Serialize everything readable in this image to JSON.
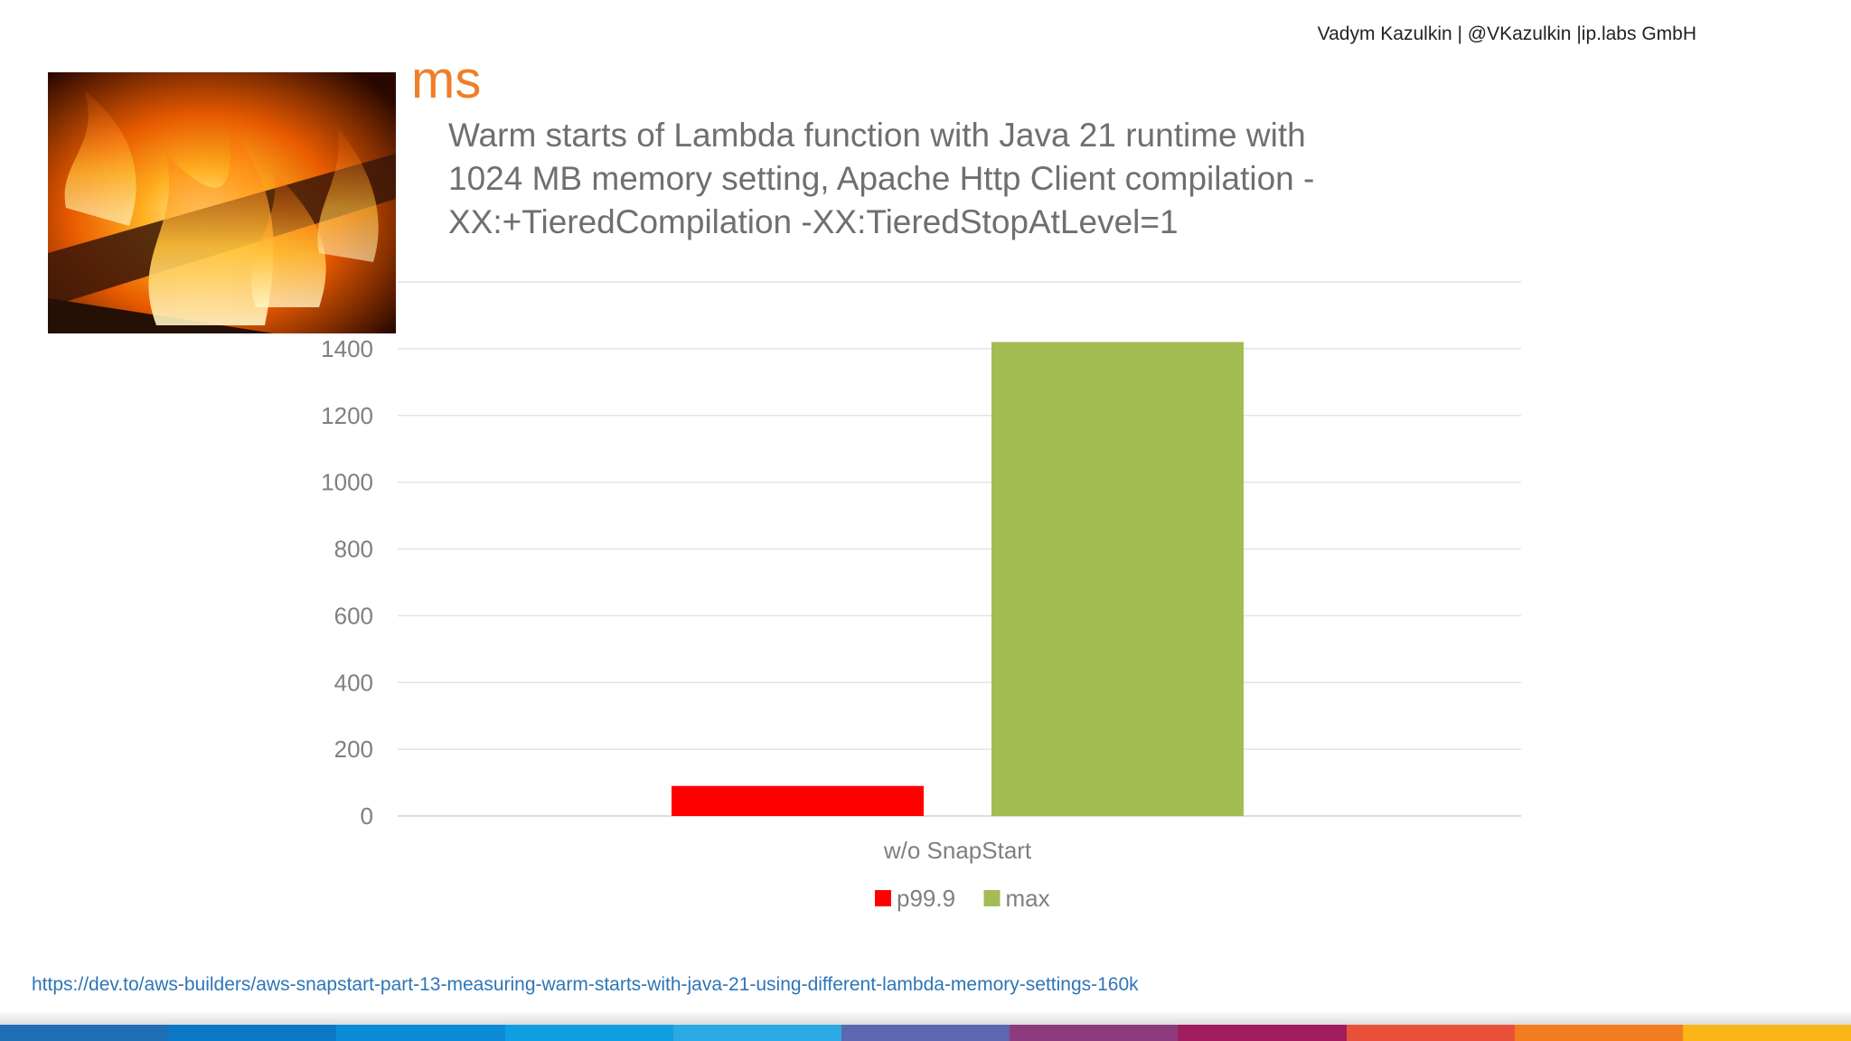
{
  "header": {
    "author": "Vadym Kazulkin | @VKazulkin |ip.labs GmbH"
  },
  "slide": {
    "unit_label": "ms",
    "title_lines": [
      "Warm starts of Lambda function with Java 21 runtime  with",
      "1024 MB memory setting, Apache Http Client compilation -",
      "XX:+TieredCompilation -XX:TieredStopAtLevel=1"
    ],
    "image_subject": "flame-icon"
  },
  "chart_data": {
    "type": "bar",
    "categories": [
      "w/o SnapStart"
    ],
    "series": [
      {
        "name": "p99.9",
        "values": [
          90
        ],
        "color": "#ff0000"
      },
      {
        "name": "max",
        "values": [
          1420
        ],
        "color": "#a3bc54"
      }
    ],
    "yticks": [
      0,
      200,
      400,
      600,
      800,
      1000,
      1200,
      1400
    ],
    "ylim": [
      0,
      1600
    ],
    "grid": true,
    "legend_position": "bottom"
  },
  "footer": {
    "source_url": "https://dev.to/aws-builders/aws-snapstart-part-13-measuring-warm-starts-with-java-21-using-different-lambda-memory-settings-160k",
    "stripe_colors": [
      "#1f6fb5",
      "#0b78c4",
      "#0b8bd6",
      "#0f9ee0",
      "#2ba9e4",
      "#5b67b0",
      "#8e3b7e",
      "#a11c5e",
      "#e9503a",
      "#f47c20",
      "#fbb516"
    ]
  }
}
